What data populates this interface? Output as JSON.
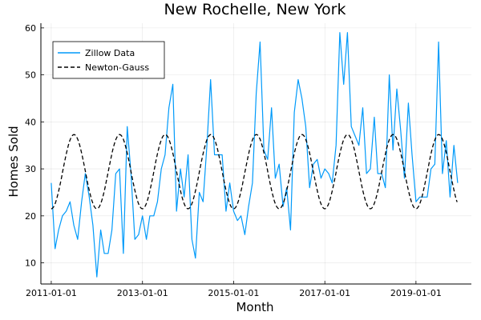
{
  "chart_data": {
    "type": "line",
    "title": "New Rochelle, New York",
    "xlabel": "Month",
    "ylabel": "Homes Sold",
    "xlim": [
      "2010-10-10",
      "2020-03-20"
    ],
    "ylim": [
      5.5,
      61
    ],
    "x_ticks": [
      "2011-01-01",
      "2013-01-01",
      "2015-01-01",
      "2017-01-01",
      "2019-01-01"
    ],
    "y_ticks": [
      10,
      20,
      30,
      40,
      50,
      60
    ],
    "grid": true,
    "legend_position": "top-left",
    "series": [
      {
        "name": "Zillow Data",
        "color": "#009AFA",
        "style": "solid",
        "x": [
          "2011-01-01",
          "2011-02-01",
          "2011-03-01",
          "2011-04-01",
          "2011-05-01",
          "2011-06-01",
          "2011-07-01",
          "2011-08-01",
          "2011-09-01",
          "2011-10-01",
          "2011-11-01",
          "2011-12-01",
          "2012-01-01",
          "2012-02-01",
          "2012-03-01",
          "2012-04-01",
          "2012-05-01",
          "2012-06-01",
          "2012-07-01",
          "2012-08-01",
          "2012-09-01",
          "2012-10-01",
          "2012-11-01",
          "2012-12-01",
          "2013-01-01",
          "2013-02-01",
          "2013-03-01",
          "2013-04-01",
          "2013-05-01",
          "2013-06-01",
          "2013-07-01",
          "2013-08-01",
          "2013-09-01",
          "2013-10-01",
          "2013-11-01",
          "2013-12-01",
          "2014-01-01",
          "2014-02-01",
          "2014-03-01",
          "2014-04-01",
          "2014-05-01",
          "2014-06-01",
          "2014-07-01",
          "2014-08-01",
          "2014-09-01",
          "2014-10-01",
          "2014-11-01",
          "2014-12-01",
          "2015-01-01",
          "2015-02-01",
          "2015-03-01",
          "2015-04-01",
          "2015-05-01",
          "2015-06-01",
          "2015-07-01",
          "2015-08-01",
          "2015-09-01",
          "2015-10-01",
          "2015-11-01",
          "2015-12-01",
          "2016-01-01",
          "2016-02-01",
          "2016-03-01",
          "2016-04-01",
          "2016-05-01",
          "2016-06-01",
          "2016-07-01",
          "2016-08-01",
          "2016-09-01",
          "2016-10-01",
          "2016-11-01",
          "2016-12-01",
          "2017-01-01",
          "2017-02-01",
          "2017-03-01",
          "2017-04-01",
          "2017-05-01",
          "2017-06-01",
          "2017-07-01",
          "2017-08-01",
          "2017-09-01",
          "2017-10-01",
          "2017-11-01",
          "2017-12-01",
          "2018-01-01",
          "2018-02-01",
          "2018-03-01",
          "2018-04-01",
          "2018-05-01",
          "2018-06-01",
          "2018-07-01",
          "2018-08-01",
          "2018-09-01",
          "2018-10-01",
          "2018-11-01",
          "2018-12-01",
          "2019-01-01",
          "2019-02-01",
          "2019-03-01",
          "2019-04-01",
          "2019-05-01",
          "2019-06-01",
          "2019-07-01",
          "2019-08-01",
          "2019-09-01",
          "2019-10-01",
          "2019-11-01",
          "2019-12-01"
        ],
        "values": [
          27,
          13,
          17,
          20,
          21,
          23,
          18,
          15,
          23,
          29,
          24,
          18,
          7,
          17,
          12,
          12,
          17,
          29,
          30,
          12,
          39,
          29,
          15,
          16,
          20,
          15,
          20,
          20,
          23,
          30,
          33,
          43,
          48,
          21,
          30,
          24,
          33,
          15,
          11,
          25,
          23,
          35,
          49,
          33,
          33,
          33,
          21,
          27,
          21,
          19,
          20,
          16,
          22,
          27,
          46,
          57,
          34,
          32,
          43,
          28,
          31,
          22,
          26,
          17,
          42,
          49,
          45,
          39,
          26,
          31,
          32,
          28,
          30,
          29,
          27,
          35,
          59,
          48,
          59,
          39,
          37,
          35,
          43,
          29,
          30,
          41,
          29,
          29,
          26,
          50,
          34,
          47,
          38,
          28,
          44,
          33,
          23,
          24,
          24,
          24,
          30,
          31,
          57,
          29,
          36,
          24,
          35,
          27
        ]
      },
      {
        "name": "Newton-Gauss",
        "color": "#000000",
        "style": "dashed",
        "fit": {
          "offset": 29.4,
          "amplitude": 7.9,
          "period_months": 12,
          "peak_month": 7
        }
      }
    ]
  }
}
